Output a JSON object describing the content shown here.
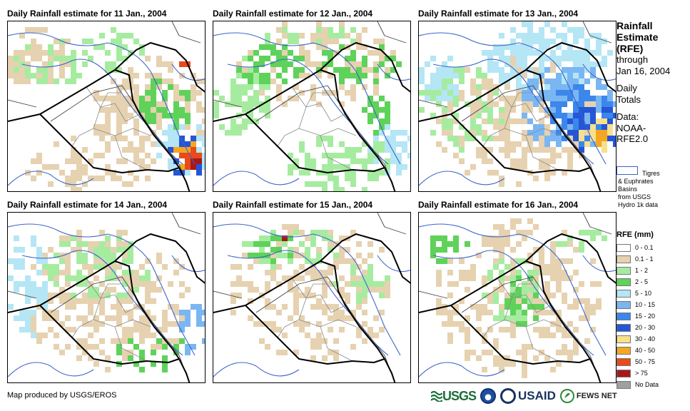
{
  "panels": [
    {
      "title": "Daily Rainfall estimate for 11 Jan., 2004"
    },
    {
      "title": "Daily Rainfall estimate for 12 Jan., 2004"
    },
    {
      "title": "Daily Rainfall estimate for 13 Jan., 2004"
    },
    {
      "title": "Daily Rainfall estimate for 14 Jan., 2004"
    },
    {
      "title": "Daily Rainfall estimate for 15 Jan., 2004"
    },
    {
      "title": "Daily Rainfall estimate for 16 Jan., 2004"
    }
  ],
  "sidebar": {
    "title_line1": "Rainfall",
    "title_line2": "Estimate",
    "title_line3": "(RFE)",
    "through": "through",
    "date": "Jan 16, 2004",
    "daily": "Daily",
    "totals": "Totals",
    "data_label": "Data:",
    "data_source1": "NOAA-",
    "data_source2": "RFE2.0",
    "basin_line1": "Tigres",
    "basin_line2": "& Euphrates",
    "basin_line3": "Basins",
    "basin_line4": "from USGS",
    "basin_line5": "Hydro 1k data"
  },
  "legend": {
    "title": "RFE (mm)",
    "items": [
      {
        "label": "0 - 0.1",
        "color": "#ffffff"
      },
      {
        "label": "0.1 - 1",
        "color": "#e6d2b0"
      },
      {
        "label": "1 - 2",
        "color": "#a6eca0"
      },
      {
        "label": "2 - 5",
        "color": "#5fd25a"
      },
      {
        "label": "5 - 10",
        "color": "#b4e6f5"
      },
      {
        "label": "10 - 15",
        "color": "#7ab6f2"
      },
      {
        "label": "15 - 20",
        "color": "#3b87eb"
      },
      {
        "label": "20 - 30",
        "color": "#2456d6"
      },
      {
        "label": "30 - 40",
        "color": "#f8e08c"
      },
      {
        "label": "40 - 50",
        "color": "#f5a623"
      },
      {
        "label": "50 - 75",
        "color": "#e84a1a"
      },
      {
        "label": "> 75",
        "color": "#a8181a"
      },
      {
        "label": "No Data",
        "color": "#a0a0a0"
      }
    ]
  },
  "footer": {
    "credit": "Map produced by USGS/EROS",
    "logo_usgs": "USGS",
    "logo_usaid": "USAID",
    "logo_fews": "FEWS NET"
  }
}
